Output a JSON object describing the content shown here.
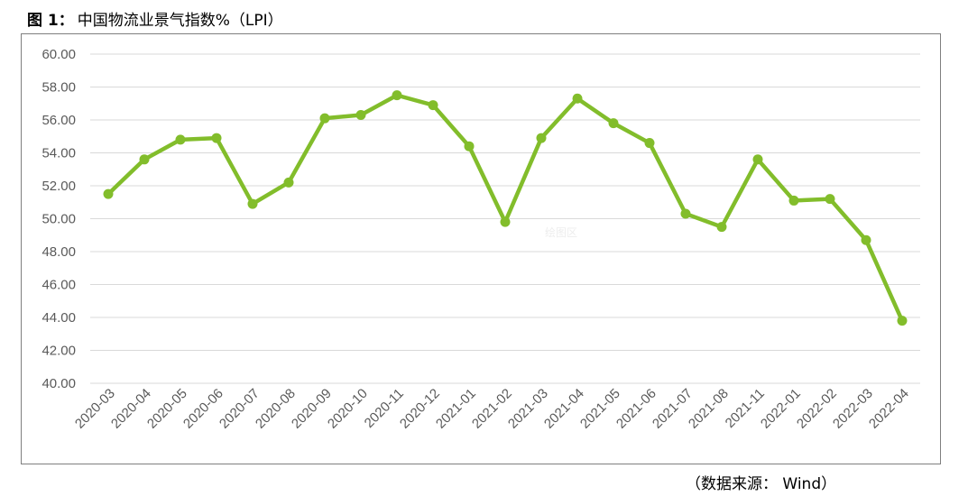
{
  "figure": {
    "number_label": "图 1：",
    "title": "中国物流业景气指数%（LPI）",
    "source": "（数据来源： Wind）",
    "watermark": "绘图区"
  },
  "chart_data": {
    "type": "line",
    "title": "中国物流业景气指数%（LPI）",
    "xlabel": "",
    "ylabel": "",
    "ylim": [
      40,
      60
    ],
    "y_ticks": [
      "40.00",
      "42.00",
      "44.00",
      "46.00",
      "48.00",
      "50.00",
      "52.00",
      "54.00",
      "56.00",
      "58.00",
      "60.00"
    ],
    "grid": true,
    "legend": "none",
    "line_color": "#82bd2b",
    "categories": [
      "2020-03",
      "2020-04",
      "2020-05",
      "2020-06",
      "2020-07",
      "2020-08",
      "2020-09",
      "2020-10",
      "2020-11",
      "2020-12",
      "2021-01",
      "2021-02",
      "2021-03",
      "2021-04",
      "2021-05",
      "2021-06",
      "2021-07",
      "2021-08",
      "2021-11",
      "2022-01",
      "2022-02",
      "2022-03",
      "2022-04"
    ],
    "values": [
      51.5,
      53.6,
      54.8,
      54.9,
      50.9,
      52.2,
      56.1,
      56.3,
      57.5,
      56.9,
      54.4,
      49.8,
      54.9,
      57.3,
      55.8,
      54.6,
      50.3,
      49.5,
      53.6,
      51.1,
      51.2,
      48.7,
      43.8
    ]
  }
}
